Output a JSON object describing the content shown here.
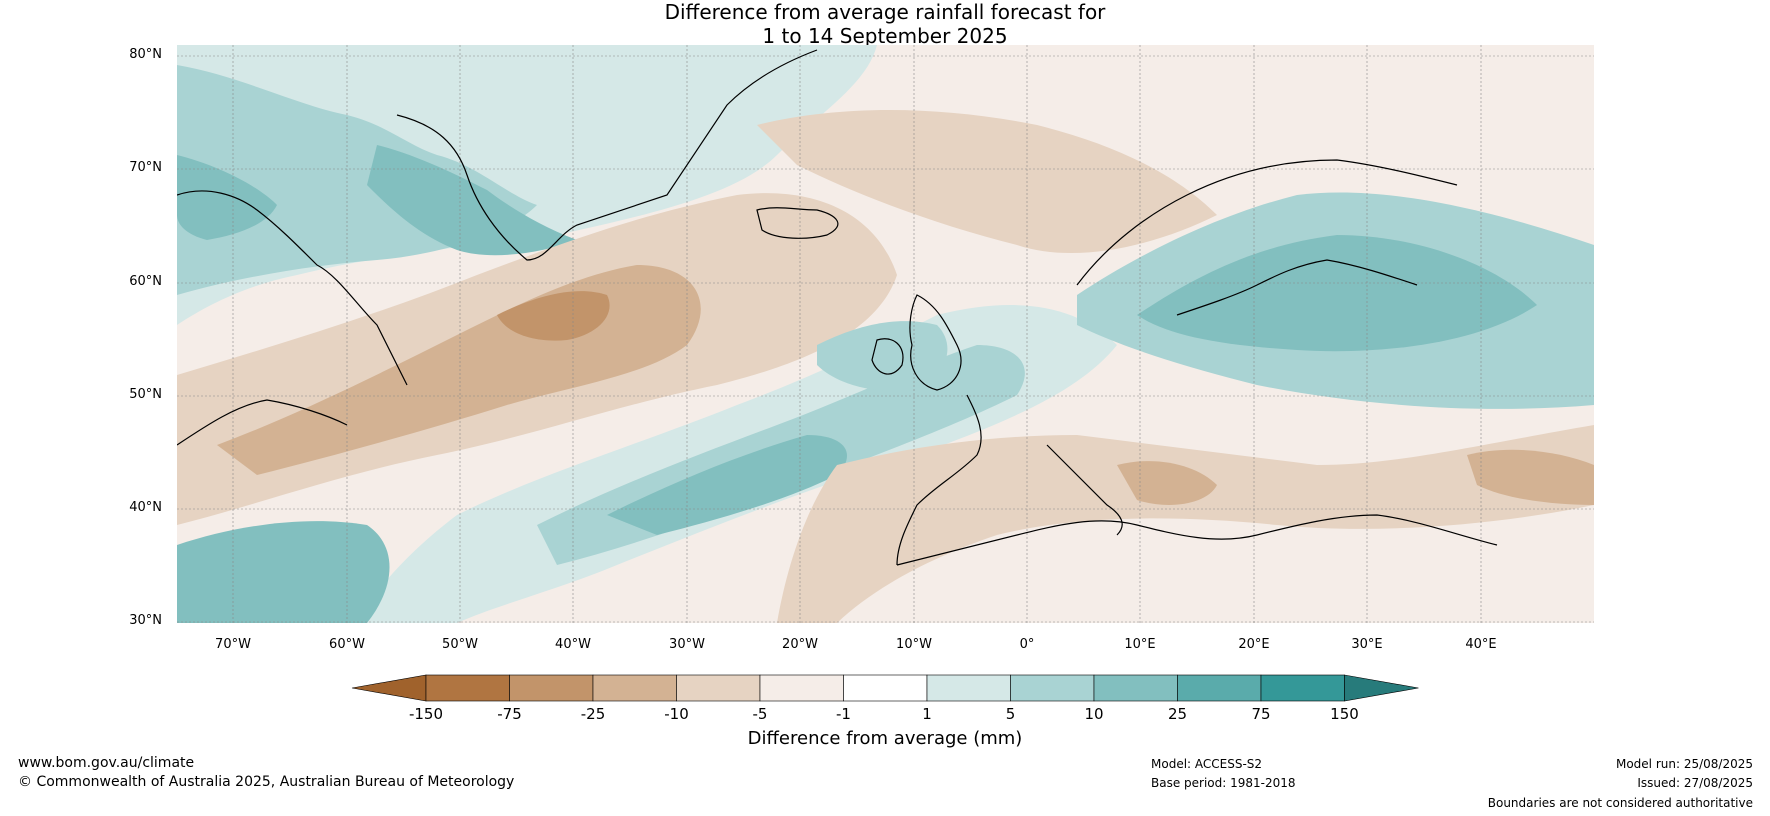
{
  "title": {
    "line1": "Difference from average rainfall forecast for",
    "line2": "1 to 14 September 2025"
  },
  "axes": {
    "lat_ticks": [
      "80°N",
      "70°N",
      "60°N",
      "50°N",
      "40°N",
      "30°N"
    ],
    "lon_ticks": [
      "70°W",
      "60°W",
      "50°W",
      "40°W",
      "30°W",
      "20°W",
      "10°W",
      "0°",
      "10°E",
      "20°E",
      "30°E",
      "40°E"
    ],
    "lat_range": [
      30,
      81
    ],
    "lon_range": [
      -75,
      50
    ]
  },
  "colorbar": {
    "title": "Difference from average (mm)",
    "tick_labels": [
      "-150",
      "-75",
      "-25",
      "-10",
      "-5",
      "-1",
      "1",
      "5",
      "10",
      "25",
      "75",
      "150"
    ],
    "colors": [
      "#a0622c",
      "#b07541",
      "#c2946a",
      "#d3b293",
      "#e6d3c2",
      "#f5ede8",
      "#ffffff",
      "#d5e8e7",
      "#a9d3d3",
      "#82bfbf",
      "#5aabab",
      "#349898",
      "#277b7b"
    ]
  },
  "footer": {
    "website": "www.bom.gov.au/climate",
    "copyright": "© Commonwealth of Australia 2025, Australian Bureau of Meteorology",
    "model": "Model: ACCESS-S2",
    "base_period": "Base period: 1981-2018",
    "model_run": "Model run: 25/08/2025",
    "issued": "Issued: 27/08/2025",
    "disclaimer": "Boundaries are not considered authoritative"
  }
}
